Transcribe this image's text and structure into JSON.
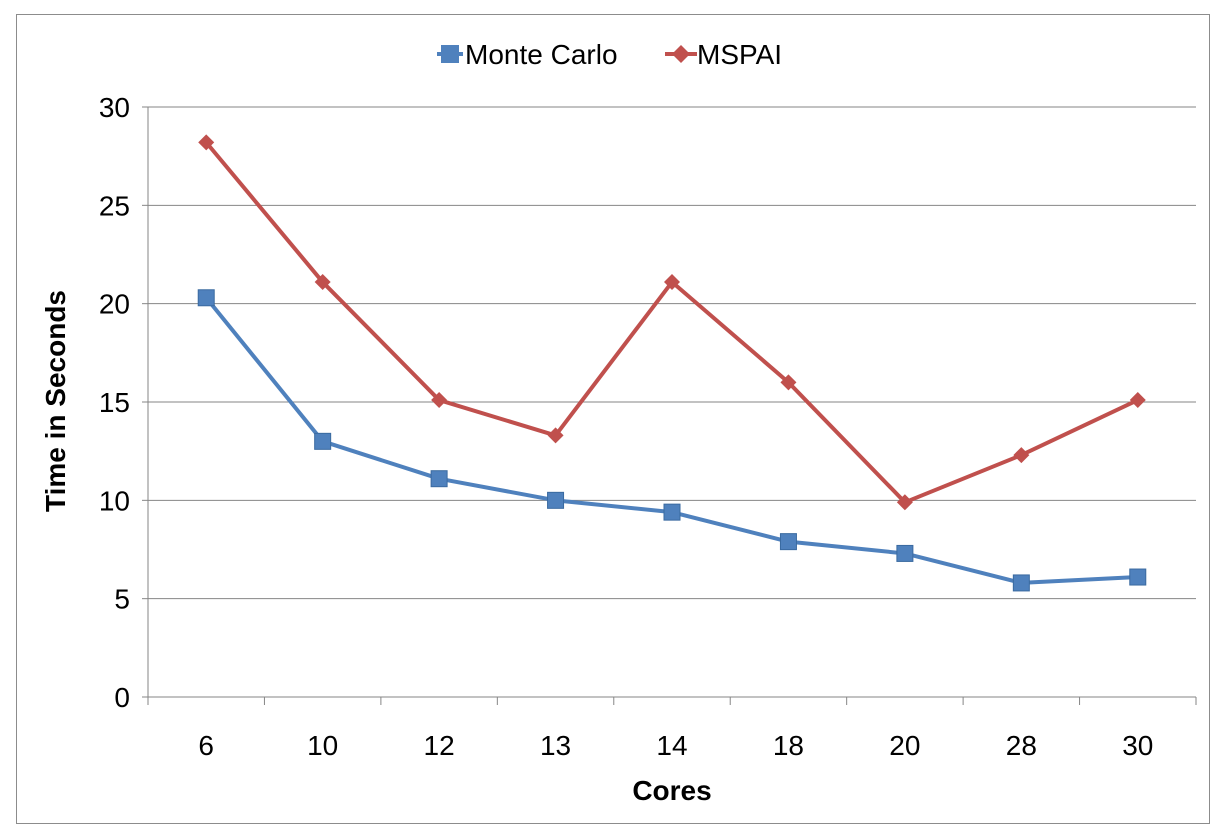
{
  "chart_data": {
    "type": "line",
    "title": "",
    "xlabel": "Cores",
    "ylabel": "Time in Seconds",
    "categories": [
      "6",
      "10",
      "12",
      "13",
      "14",
      "18",
      "20",
      "28",
      "30"
    ],
    "ylim": [
      0,
      30
    ],
    "yticks": [
      "0",
      "5",
      "10",
      "15",
      "20",
      "25",
      "30"
    ],
    "grid": true,
    "legend_position": "top-center",
    "series": [
      {
        "name": "Monte Carlo",
        "color": "#4f81bd",
        "marker": "square",
        "values": [
          20.3,
          13.0,
          11.1,
          10.0,
          9.4,
          7.9,
          7.3,
          5.8,
          6.1
        ]
      },
      {
        "name": "MSPAI",
        "color": "#c0504d",
        "marker": "diamond",
        "values": [
          28.2,
          21.1,
          15.1,
          13.3,
          21.1,
          16.0,
          9.9,
          12.3,
          15.1
        ]
      }
    ]
  }
}
